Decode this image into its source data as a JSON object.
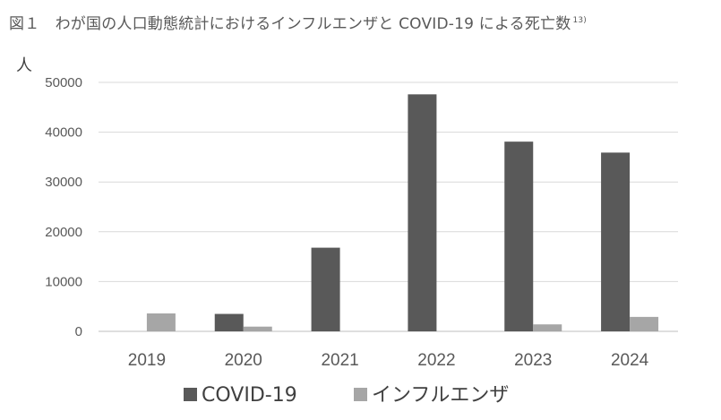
{
  "title": "図１　わが国の人口動態統計におけるインフルエンザと COVID-19 による死亡数",
  "title_ref": "13)",
  "chart_data": {
    "type": "bar",
    "title": "図１　わが国の人口動態統計におけるインフルエンザと COVID-19 による死亡数",
    "ylabel": "人",
    "xlabel": "",
    "categories": [
      "2019",
      "2020",
      "2021",
      "2022",
      "2023",
      "2024"
    ],
    "series": [
      {
        "name": "COVID-19",
        "color": "#595959",
        "values": [
          0,
          3500,
          16800,
          47600,
          38100,
          35900
        ]
      },
      {
        "name": "インフルエンザ",
        "color": "#a6a6a6",
        "values": [
          3600,
          950,
          0,
          0,
          1400,
          2900
        ]
      }
    ],
    "ylim": [
      0,
      50000
    ],
    "yticks": [
      0,
      10000,
      20000,
      30000,
      40000,
      50000
    ],
    "grid": true,
    "legend_position": "bottom"
  }
}
